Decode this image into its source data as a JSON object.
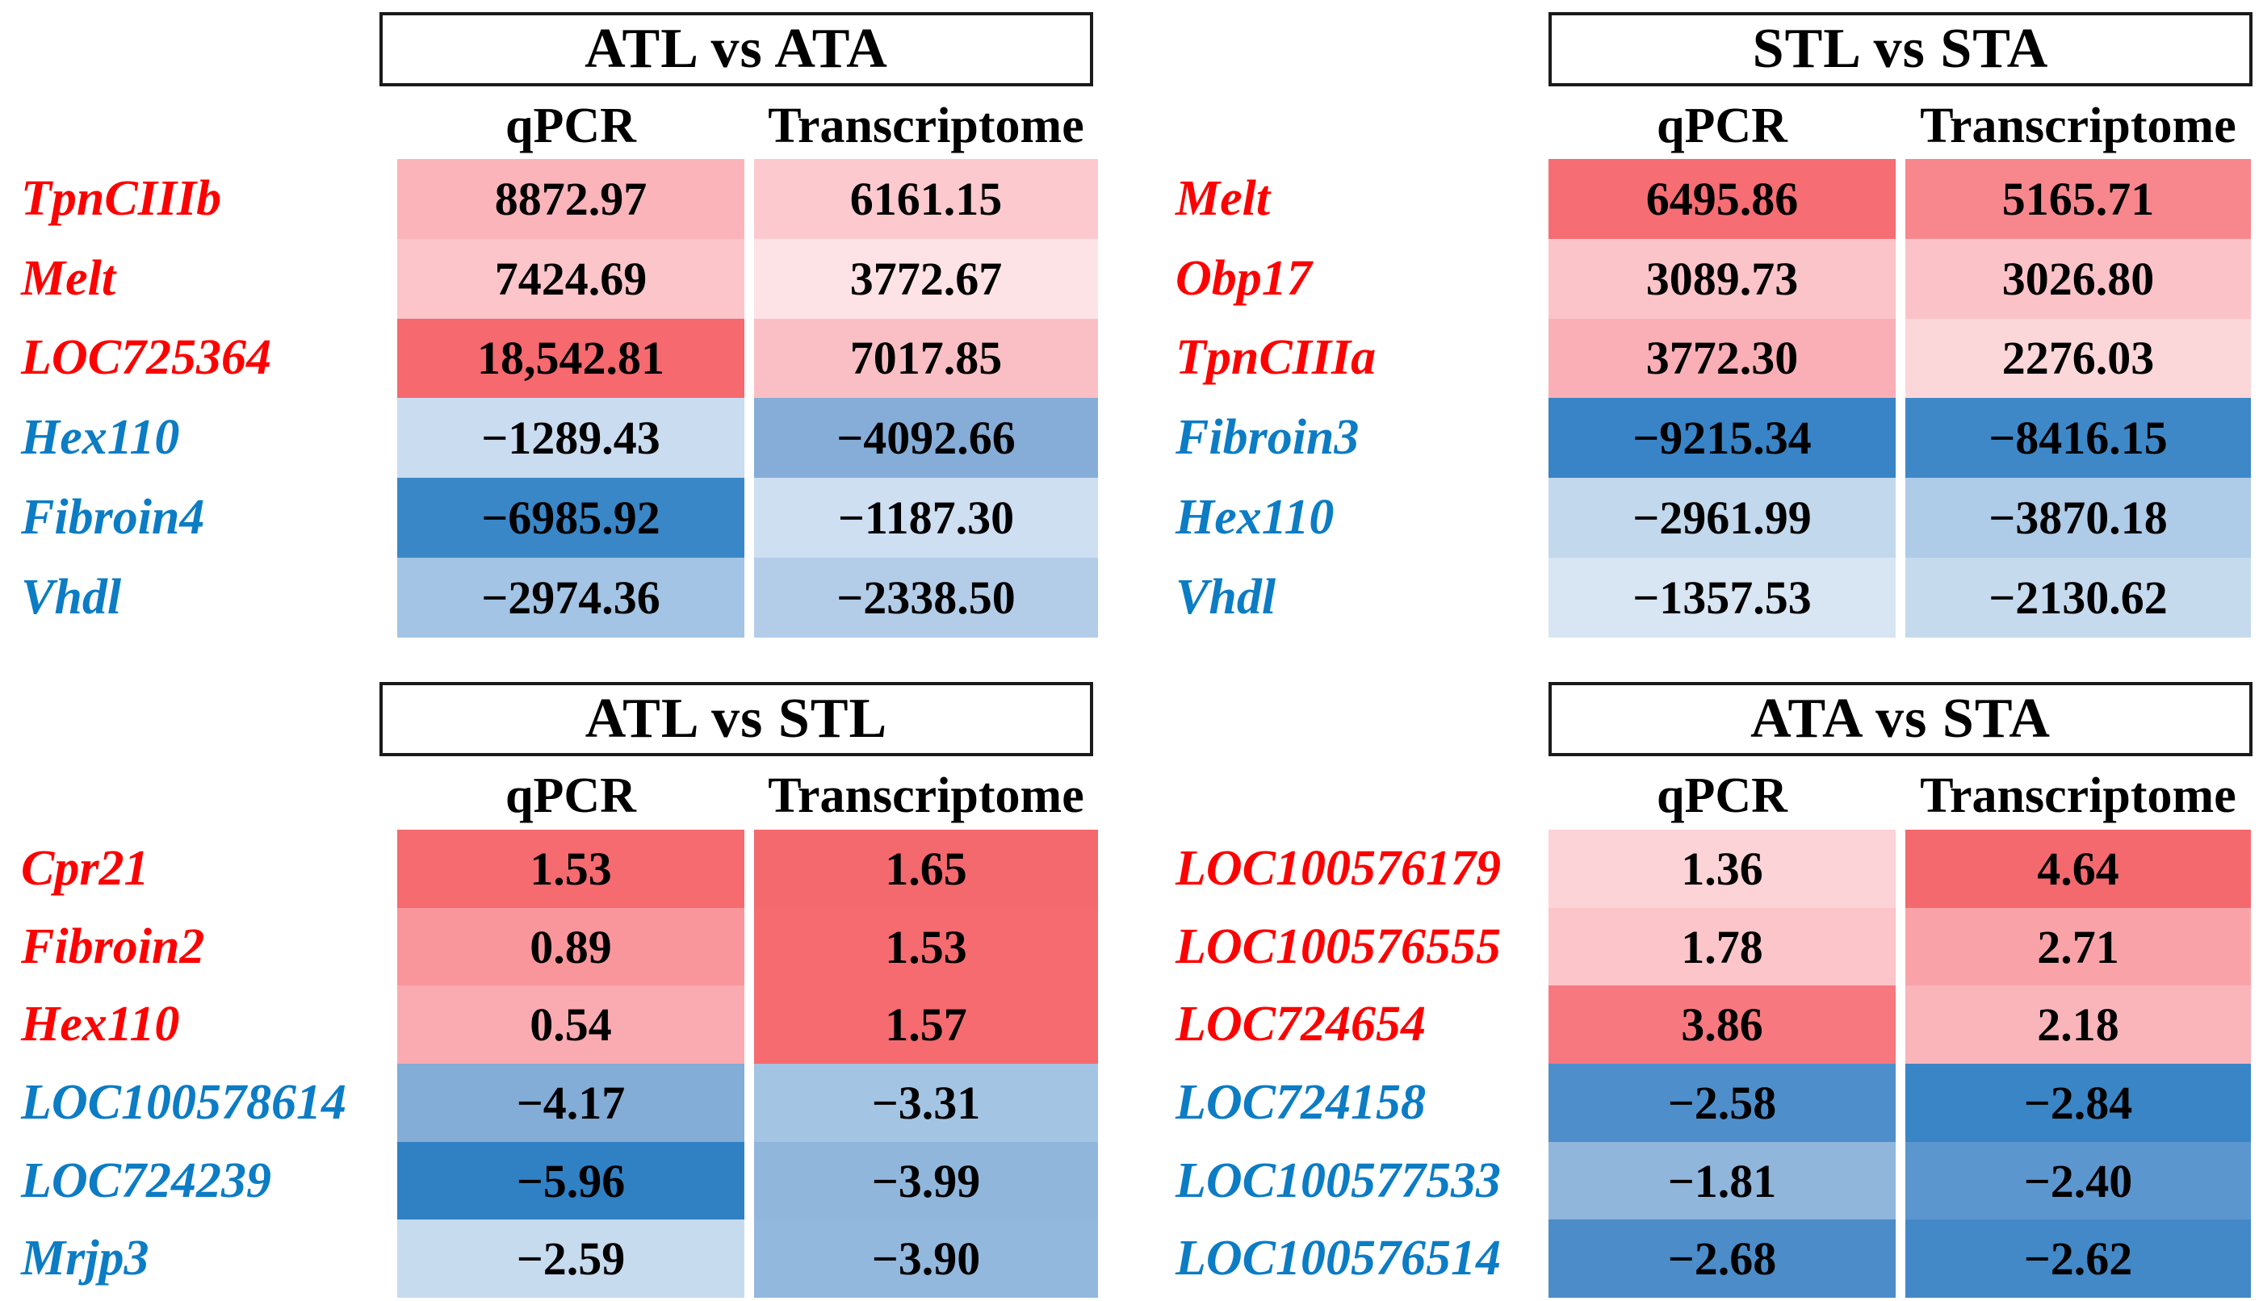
{
  "tables": [
    {
      "title": "ATL vs ATA",
      "col_headers": [
        "qPCR",
        "Transcriptome"
      ],
      "rows": [
        {
          "gene": "TpnCIIIb",
          "direction": "up",
          "qpcr": "8872.97",
          "qpcr_bg": "#FAB4BA",
          "trans": "6161.15",
          "trans_bg": "#FBC9CE"
        },
        {
          "gene": "Melt",
          "direction": "up",
          "qpcr": "7424.69",
          "qpcr_bg": "#FBC5CA",
          "trans": "3772.67",
          "trans_bg": "#FDE3E5"
        },
        {
          "gene": "LOC725364",
          "direction": "up",
          "qpcr": "18,542.81",
          "qpcr_bg": "#F5696F",
          "trans": "7017.85",
          "trans_bg": "#FABFC5"
        },
        {
          "gene": "Hex110",
          "direction": "down",
          "qpcr": "−1289.43",
          "qpcr_bg": "#C9DCF0",
          "trans": "−4092.66",
          "trans_bg": "#85ADD7"
        },
        {
          "gene": "Fibroin4",
          "direction": "down",
          "qpcr": "−6985.92",
          "qpcr_bg": "#3A87C8",
          "trans": "−1187.30",
          "trans_bg": "#CEDFF2"
        },
        {
          "gene": "Vhdl",
          "direction": "down",
          "qpcr": "−2974.36",
          "qpcr_bg": "#A3C4E4",
          "trans": "−2338.50",
          "trans_bg": "#B3CDE9"
        }
      ]
    },
    {
      "title": "STL vs STA",
      "col_headers": [
        "qPCR",
        "Transcriptome"
      ],
      "rows": [
        {
          "gene": "Melt",
          "direction": "up",
          "qpcr": "6495.86",
          "qpcr_bg": "#F66D73",
          "trans": "5165.71",
          "trans_bg": "#F8878D"
        },
        {
          "gene": "Obp17",
          "direction": "up",
          "qpcr": "3089.73",
          "qpcr_bg": "#FBC4C9",
          "trans": "3026.80",
          "trans_bg": "#FBC3C8"
        },
        {
          "gene": "TpnCIIIa",
          "direction": "up",
          "qpcr": "3772.30",
          "qpcr_bg": "#FAAFB6",
          "trans": "2276.03",
          "trans_bg": "#FCD7DA"
        },
        {
          "gene": "Fibroin3",
          "direction": "down",
          "qpcr": "−9215.34",
          "qpcr_bg": "#3884C6",
          "trans": "−8416.15",
          "trans_bg": "#3F88C8"
        },
        {
          "gene": "Hex110",
          "direction": "down",
          "qpcr": "−2961.99",
          "qpcr_bg": "#C2D8EC",
          "trans": "−3870.18",
          "trans_bg": "#AECBE7"
        },
        {
          "gene": "Vhdl",
          "direction": "down",
          "qpcr": "−1357.53",
          "qpcr_bg": "#D8E5F3",
          "trans": "−2130.62",
          "trans_bg": "#C6DAEE"
        }
      ]
    },
    {
      "title": "ATL vs STL",
      "col_headers": [
        "qPCR",
        "Transcriptome"
      ],
      "rows": [
        {
          "gene": "Cpr21",
          "direction": "up",
          "qpcr": "1.53",
          "qpcr_bg": "#F56B70",
          "trans": "1.65",
          "trans_bg": "#F4696E"
        },
        {
          "gene": "Fibroin2",
          "direction": "up",
          "qpcr": "0.89",
          "qpcr_bg": "#F9969C",
          "trans": "1.53",
          "trans_bg": "#F56B70"
        },
        {
          "gene": "Hex110",
          "direction": "up",
          "qpcr": "0.54",
          "qpcr_bg": "#FAABB1",
          "trans": "1.57",
          "trans_bg": "#F56B70"
        },
        {
          "gene": "LOC100578614",
          "direction": "down",
          "qpcr": "−4.17",
          "qpcr_bg": "#83ACD7",
          "trans": "−3.31",
          "trans_bg": "#A4C4E4"
        },
        {
          "gene": "LOC724239",
          "direction": "down",
          "qpcr": "−5.96",
          "qpcr_bg": "#3080C4",
          "trans": "−3.99",
          "trans_bg": "#90B6DC"
        },
        {
          "gene": "Mrjp3",
          "direction": "down",
          "qpcr": "−2.59",
          "qpcr_bg": "#C7DBEF",
          "trans": "−3.90",
          "trans_bg": "#93B8DD"
        }
      ]
    },
    {
      "title": "ATA vs STA",
      "col_headers": [
        "qPCR",
        "Transcriptome"
      ],
      "rows": [
        {
          "gene": "LOC100576179",
          "direction": "up",
          "qpcr": "1.36",
          "qpcr_bg": "#FCD3D7",
          "trans": "4.64",
          "trans_bg": "#F4696E"
        },
        {
          "gene": "LOC100576555",
          "direction": "up",
          "qpcr": "1.78",
          "qpcr_bg": "#FBC5CA",
          "trans": "2.71",
          "trans_bg": "#F9A3A9"
        },
        {
          "gene": "LOC724654",
          "direction": "up",
          "qpcr": "3.86",
          "qpcr_bg": "#F7797F",
          "trans": "2.18",
          "trans_bg": "#FAB5BB"
        },
        {
          "gene": "LOC724158",
          "direction": "down",
          "qpcr": "−2.58",
          "qpcr_bg": "#4E8FCB",
          "trans": "−2.84",
          "trans_bg": "#3A85C6"
        },
        {
          "gene": "LOC100577533",
          "direction": "down",
          "qpcr": "−1.81",
          "qpcr_bg": "#90B6DC",
          "trans": "−2.40",
          "trans_bg": "#5C96CE"
        },
        {
          "gene": "LOC100576514",
          "direction": "down",
          "qpcr": "−2.68",
          "qpcr_bg": "#4B8CC9",
          "trans": "−2.62",
          "trans_bg": "#4389C8"
        }
      ]
    }
  ],
  "colors": {
    "upregulated_label": "#FE0000",
    "downregulated_label": "#0C7CC4",
    "strong_red_cell": "#F4696E",
    "strong_blue_cell": "#3080C4",
    "title_border": "#1A1A1A"
  },
  "chart_data": [
    {
      "type": "heatmap",
      "title": "ATL vs ATA",
      "columns": [
        "qPCR",
        "Transcriptome"
      ],
      "genes": [
        "TpnCIIIb",
        "Melt",
        "LOC725364",
        "Hex110",
        "Fibroin4",
        "Vhdl"
      ],
      "values": [
        [
          8872.97,
          6161.15
        ],
        [
          7424.69,
          3772.67
        ],
        [
          18542.81,
          7017.85
        ],
        [
          -1289.43,
          -4092.66
        ],
        [
          -6985.92,
          -1187.3
        ],
        [
          -2974.36,
          -2338.5
        ]
      ],
      "color_encoding": "red shades = positive / up-regulated (red gene labels), blue shades = negative / down-regulated (blue gene labels)"
    },
    {
      "type": "heatmap",
      "title": "STL vs STA",
      "columns": [
        "qPCR",
        "Transcriptome"
      ],
      "genes": [
        "Melt",
        "Obp17",
        "TpnCIIIa",
        "Fibroin3",
        "Hex110",
        "Vhdl"
      ],
      "values": [
        [
          6495.86,
          5165.71
        ],
        [
          3089.73,
          3026.8
        ],
        [
          3772.3,
          2276.03
        ],
        [
          -9215.34,
          -8416.15
        ],
        [
          -2961.99,
          -3870.18
        ],
        [
          -1357.53,
          -2130.62
        ]
      ],
      "color_encoding": "red shades = positive / up-regulated, blue shades = negative / down-regulated"
    },
    {
      "type": "heatmap",
      "title": "ATL vs STL",
      "columns": [
        "qPCR",
        "Transcriptome"
      ],
      "genes": [
        "Cpr21",
        "Fibroin2",
        "Hex110",
        "LOC100578614",
        "LOC724239",
        "Mrjp3"
      ],
      "values": [
        [
          1.53,
          1.65
        ],
        [
          0.89,
          1.53
        ],
        [
          0.54,
          1.57
        ],
        [
          -4.17,
          -3.31
        ],
        [
          -5.96,
          -3.99
        ],
        [
          -2.59,
          -3.9
        ]
      ],
      "color_encoding": "red shades = positive / up-regulated, blue shades = negative / down-regulated"
    },
    {
      "type": "heatmap",
      "title": "ATA vs STA",
      "columns": [
        "qPCR",
        "Transcriptome"
      ],
      "genes": [
        "LOC100576179",
        "LOC100576555",
        "LOC724654",
        "LOC724158",
        "LOC100577533",
        "LOC100576514"
      ],
      "values": [
        [
          1.36,
          4.64
        ],
        [
          1.78,
          2.71
        ],
        [
          3.86,
          2.18
        ],
        [
          -2.58,
          -2.84
        ],
        [
          -1.81,
          -2.4
        ],
        [
          -2.68,
          -2.62
        ]
      ],
      "color_encoding": "red shades = positive / up-regulated, blue shades = negative / down-regulated"
    }
  ]
}
